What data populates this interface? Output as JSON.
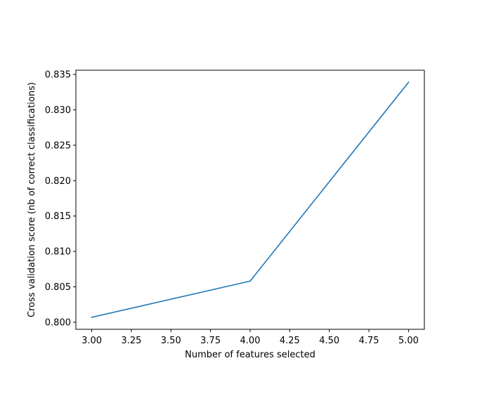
{
  "chart_data": {
    "type": "line",
    "title": "",
    "xlabel": "Number of features selected",
    "ylabel": "Cross validation score (nb of correct classifications)",
    "xlim": [
      2.9,
      5.1
    ],
    "ylim": [
      0.799,
      0.8356
    ],
    "x_ticks": [
      3.0,
      3.25,
      3.5,
      3.75,
      4.0,
      4.25,
      4.5,
      4.75,
      5.0
    ],
    "x_tick_labels": [
      "3.00",
      "3.25",
      "3.50",
      "3.75",
      "4.00",
      "4.25",
      "4.50",
      "4.75",
      "5.00"
    ],
    "y_ticks": [
      0.8,
      0.805,
      0.81,
      0.815,
      0.82,
      0.825,
      0.83,
      0.835
    ],
    "y_tick_labels": [
      "0.800",
      "0.805",
      "0.810",
      "0.815",
      "0.820",
      "0.825",
      "0.830",
      "0.835"
    ],
    "grid": false,
    "series": [
      {
        "x": [
          3,
          4,
          5
        ],
        "values": [
          0.8007,
          0.8058,
          0.8339
        ]
      }
    ],
    "colors": {
      "line": "#1f77b4",
      "axes": "#000000"
    }
  }
}
